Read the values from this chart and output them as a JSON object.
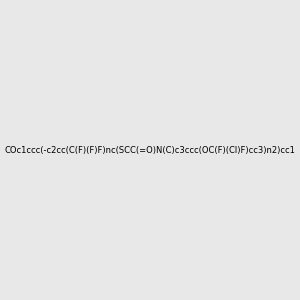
{
  "smiles": "COc1ccc(-c2cc(C(F)(F)F)nc(SCC(=O)N(C)c3ccc(OC(F)(Cl)F)cc3)n2)cc1",
  "image_size": 300,
  "background_color": "#e8e8e8",
  "atom_colors": {
    "N": "#0000ff",
    "O": "#ff0000",
    "S": "#ccaa00",
    "F": "#ff00ff",
    "Cl": "#00cc00"
  }
}
